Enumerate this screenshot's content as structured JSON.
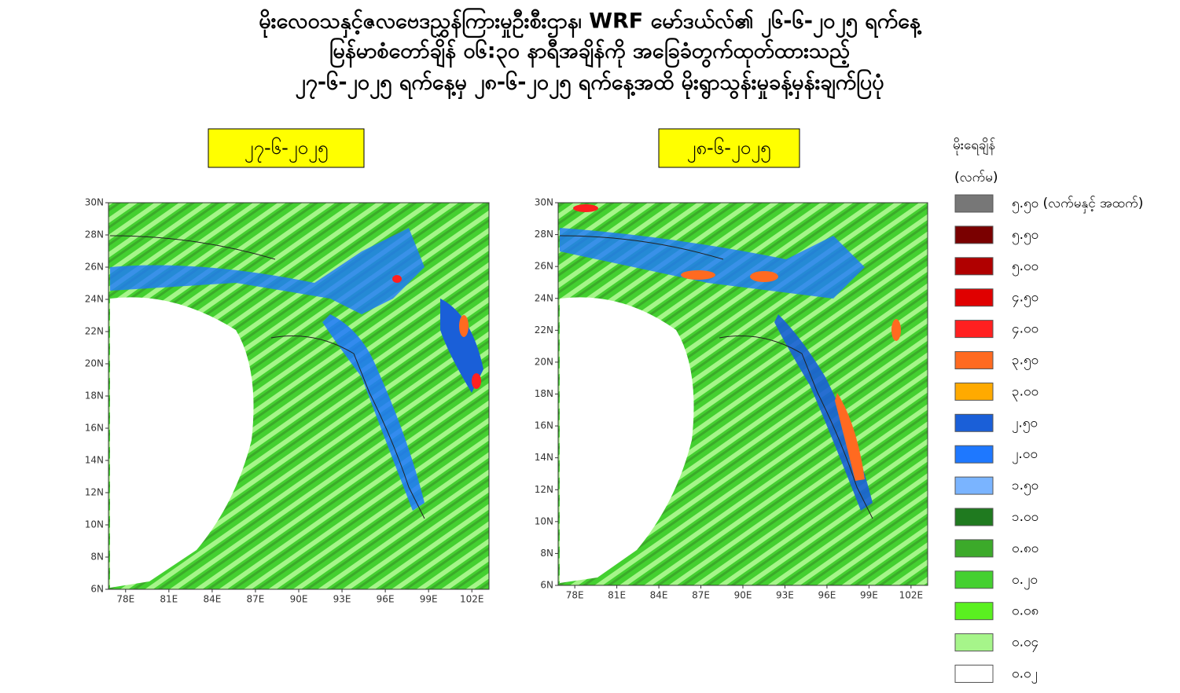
{
  "header": {
    "title_lines": [
      "မိုးလေဝသနှင့်ဇလဗေဒညွှန်ကြားမှုဦးစီးဌာန၊ WRF မော်ဒယ်လ်၏ ၂၆-၆-၂၀၂၅ ရက်နေ့",
      "မြန်မာစံတော်ချိန် ၀၆:၃၀ နာရီအချိန်ကို အခြေခံတွက်ထုတ်ထားသည့်",
      "၂၇-၆-၂၀၂၅ ရက်နေ့မှ ၂၈-၆-၂၀၂၅ ရက်နေ့အထိ မိုးရွာသွန်းမှုခန့်မှန်းချက်ပြပုံ"
    ]
  },
  "maps": [
    {
      "date": "၂၇-၆-၂၀၂၅",
      "xticks": [
        "78E",
        "81E",
        "84E",
        "87E",
        "90E",
        "93E",
        "96E",
        "99E",
        "102E"
      ],
      "yticks": [
        "6N",
        "8N",
        "10N",
        "12N",
        "14N",
        "16N",
        "18N",
        "20N",
        "22N",
        "24N",
        "26N",
        "28N",
        "30N"
      ]
    },
    {
      "date": "၂၈-၆-၂၀၂၅",
      "xticks": [
        "78E",
        "81E",
        "84E",
        "87E",
        "90E",
        "93E",
        "96E",
        "99E",
        "102E"
      ],
      "yticks": [
        "6N",
        "8N",
        "10N",
        "12N",
        "14N",
        "16N",
        "18N",
        "20N",
        "22N",
        "24N",
        "26N",
        "28N",
        "30N"
      ]
    }
  ],
  "legend": {
    "title": "မိုးရေချိန်",
    "unit": "(လက်မ)",
    "items": [
      {
        "label": "၅.၅၀ (လက်မနှင့် အထက်)",
        "color": "#777777"
      },
      {
        "label": "၅.၅၀",
        "color": "#7a0000"
      },
      {
        "label": "၅.၀၀",
        "color": "#b00000"
      },
      {
        "label": "၄.၅၀",
        "color": "#e00000"
      },
      {
        "label": "၄.၀၀",
        "color": "#ff2020"
      },
      {
        "label": "၃.၅၀",
        "color": "#ff6a20"
      },
      {
        "label": "၃.၀၀",
        "color": "#ffaa00"
      },
      {
        "label": "၂.၅၀",
        "color": "#1a5fd8"
      },
      {
        "label": "၂.၀၀",
        "color": "#1e78ff"
      },
      {
        "label": "၁.၅၀",
        "color": "#7ab4ff"
      },
      {
        "label": "၁.၀၀",
        "color": "#1f7a1f"
      },
      {
        "label": "၀.၈၀",
        "color": "#3caa2a"
      },
      {
        "label": "၀.၂၀",
        "color": "#44d030"
      },
      {
        "label": "၀.၀၈",
        "color": "#5af020"
      },
      {
        "label": "၀.၀၄",
        "color": "#a6f58a"
      },
      {
        "label": "၀.၀၂",
        "color": "#ffffff"
      }
    ]
  }
}
